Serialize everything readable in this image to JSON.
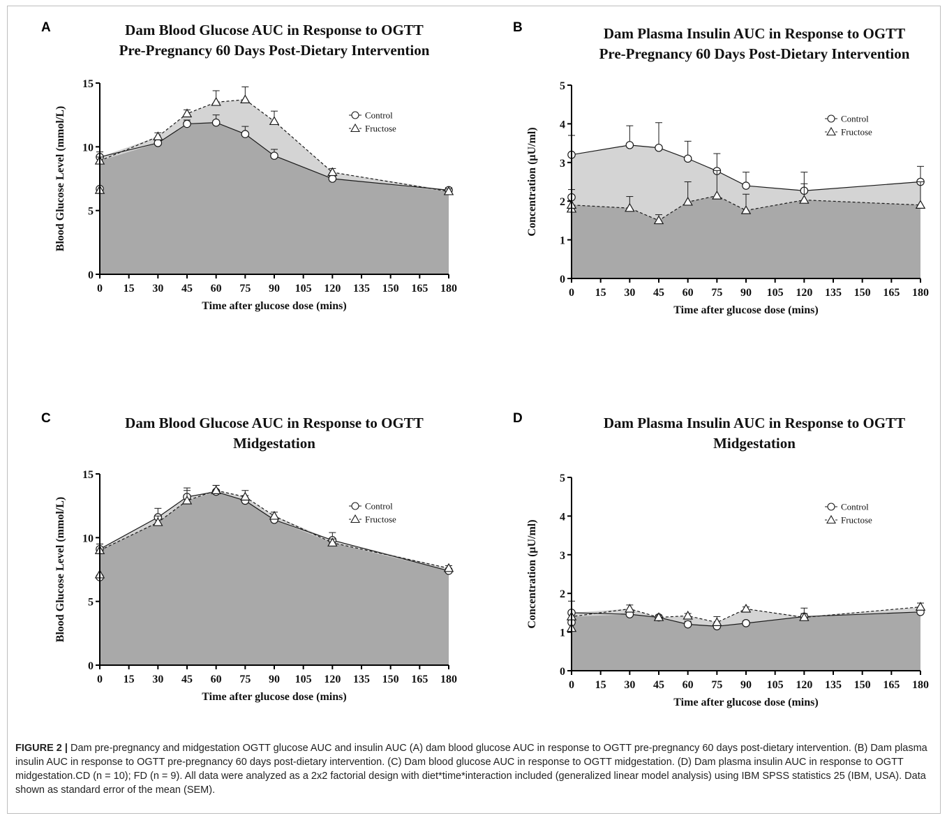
{
  "caption": {
    "label": "FIGURE 2 |",
    "text": "Dam pre-pregnancy and midgestation OGTT glucose AUC and insulin AUC (A) dam blood glucose AUC in response to OGTT pre-pregnancy 60 days post-dietary intervention. (B) Dam plasma insulin AUC in response to OGTT pre-pregnancy 60 days post-dietary intervention. (C) Dam blood glucose AUC in response to OGTT midgestation. (D) Dam plasma insulin AUC in response to OGTT midgestation.CD (n = 10); FD (n = 9). All data were analyzed as a 2x2 factorial design with diet*time*interaction included (generalized linear model analysis) using IBM SPSS statistics 25 (IBM, USA). Data shown as standard error of the mean (SEM)."
  },
  "colors": {
    "control_fill": "#a9a9a9",
    "fructose_fill": "#d4d4d4",
    "line": "#1a1a1a",
    "marker_fill": "#ffffff"
  },
  "chart_data": [
    {
      "panel": "A",
      "type": "area",
      "title": [
        "Dam Blood Glucose AUC in Response to OGTT",
        "Pre-Pregnancy 60 Days Post-Dietary Intervention"
      ],
      "xlabel": "Time after glucose dose (mins)",
      "ylabel": "Blood Glucose Level (mmol/L)",
      "xlim": [
        0,
        180
      ],
      "ylim": [
        0,
        15
      ],
      "xticks": [
        0,
        15,
        30,
        45,
        60,
        75,
        90,
        105,
        120,
        135,
        150,
        165,
        180
      ],
      "yticks": [
        0,
        5,
        10,
        15
      ],
      "legend_position": "top-right",
      "series": [
        {
          "name": "Control",
          "marker": "circle",
          "line": "solid",
          "x": [
            0,
            0,
            30,
            45,
            60,
            75,
            90,
            120,
            180
          ],
          "y": [
            6.7,
            9.2,
            10.3,
            11.8,
            11.9,
            11.0,
            9.3,
            7.5,
            6.6
          ],
          "err": [
            0,
            0.4,
            0.2,
            0.3,
            0.6,
            0.6,
            0.5,
            0.2,
            0.2
          ]
        },
        {
          "name": "Fructose",
          "marker": "triangle",
          "line": "dashed",
          "x": [
            0,
            0,
            30,
            45,
            60,
            75,
            90,
            120,
            180
          ],
          "y": [
            6.6,
            8.9,
            10.8,
            12.6,
            13.5,
            13.7,
            12.0,
            8.0,
            6.5
          ],
          "err": [
            0,
            0.3,
            0.3,
            0.3,
            0.9,
            1.0,
            0.8,
            0.3,
            0.2
          ]
        }
      ]
    },
    {
      "panel": "B",
      "type": "area",
      "title": [
        "Dam Plasma Insulin AUC in Response to OGTT",
        "Pre-Pregnancy 60 Days Post-Dietary Intervention"
      ],
      "xlabel": "Time after glucose dose (mins)",
      "ylabel": "Concentration  (μU/ml)",
      "xlim": [
        0,
        180
      ],
      "ylim": [
        0,
        5
      ],
      "xticks": [
        0,
        15,
        30,
        45,
        60,
        75,
        90,
        105,
        120,
        135,
        150,
        165,
        180
      ],
      "yticks": [
        0,
        1,
        2,
        3,
        4,
        5
      ],
      "legend_position": "top-right",
      "series": [
        {
          "name": "Control",
          "marker": "circle",
          "line": "solid",
          "x": [
            0,
            0,
            30,
            45,
            60,
            75,
            90,
            120,
            180
          ],
          "y": [
            2.1,
            3.2,
            3.45,
            3.38,
            3.1,
            2.78,
            2.4,
            2.27,
            2.5
          ],
          "err": [
            0,
            0.5,
            0.5,
            0.65,
            0.45,
            0.45,
            0.35,
            0.48,
            0.4
          ]
        },
        {
          "name": "Fructose",
          "marker": "triangle",
          "line": "dashed",
          "x": [
            0,
            0,
            30,
            45,
            60,
            75,
            90,
            120,
            180
          ],
          "y": [
            1.8,
            1.9,
            1.82,
            1.5,
            1.98,
            2.14,
            1.76,
            2.03,
            1.9
          ],
          "err": [
            0.5,
            0,
            0.3,
            0.15,
            0.52,
            0.65,
            0.42,
            0.42,
            0.6
          ]
        }
      ]
    },
    {
      "panel": "C",
      "type": "area",
      "title": [
        "Dam Blood Glucose AUC in Response to OGTT",
        "Midgestation"
      ],
      "xlabel": "Time after glucose dose (mins)",
      "ylabel": "Blood Glucose Level (mmol/L)",
      "xlim": [
        0,
        180
      ],
      "ylim": [
        0,
        15
      ],
      "xticks": [
        0,
        15,
        30,
        45,
        60,
        75,
        90,
        105,
        120,
        135,
        150,
        165,
        180
      ],
      "yticks": [
        0,
        5,
        10,
        15
      ],
      "legend_position": "top-right",
      "series": [
        {
          "name": "Control",
          "marker": "circle",
          "line": "solid",
          "x": [
            0,
            0,
            30,
            45,
            60,
            75,
            90,
            120,
            180
          ],
          "y": [
            6.9,
            9.1,
            11.6,
            13.2,
            13.6,
            12.9,
            11.4,
            9.8,
            7.4
          ],
          "err": [
            0,
            0.4,
            0.7,
            0.7,
            0.5,
            0.4,
            0.2,
            0.6,
            0.2
          ]
        },
        {
          "name": "Fructose",
          "marker": "triangle",
          "line": "dashed",
          "x": [
            0,
            0,
            30,
            45,
            60,
            75,
            90,
            120,
            180
          ],
          "y": [
            7.1,
            9.0,
            11.2,
            12.9,
            13.7,
            13.2,
            11.7,
            9.6,
            7.6
          ],
          "err": [
            0,
            0.5,
            0.5,
            0.8,
            0.4,
            0.5,
            0.3,
            0.3,
            0.2
          ]
        }
      ]
    },
    {
      "panel": "D",
      "type": "area",
      "title": [
        "Dam Plasma Insulin AUC in Response to OGTT",
        "Midgestation"
      ],
      "xlabel": "Time after glucose dose (mins)",
      "ylabel": "Concentration  (μU/ml)",
      "xlim": [
        0,
        180
      ],
      "ylim": [
        0,
        5
      ],
      "xticks": [
        0,
        15,
        30,
        45,
        60,
        75,
        90,
        105,
        120,
        135,
        150,
        165,
        180
      ],
      "yticks": [
        0,
        1,
        2,
        3,
        4,
        5
      ],
      "legend_position": "top-right",
      "series": [
        {
          "name": "Control",
          "marker": "circle",
          "line": "solid",
          "x": [
            0,
            0,
            30,
            45,
            60,
            75,
            90,
            120,
            180
          ],
          "y": [
            1.25,
            1.5,
            1.46,
            1.38,
            1.2,
            1.15,
            1.23,
            1.4,
            1.52
          ],
          "err": [
            0,
            0.3,
            0.08,
            0.06,
            0.08,
            0.08,
            0.06,
            0.22,
            0.06
          ]
        },
        {
          "name": "Fructose",
          "marker": "triangle",
          "line": "dashed",
          "x": [
            0,
            0,
            30,
            45,
            60,
            75,
            90,
            120,
            180
          ],
          "y": [
            1.1,
            1.4,
            1.6,
            1.38,
            1.42,
            1.25,
            1.6,
            1.38,
            1.65
          ],
          "err": [
            0,
            0,
            0.1,
            0.05,
            0.06,
            0.15,
            0.05,
            0.1,
            0.1
          ]
        }
      ]
    }
  ]
}
